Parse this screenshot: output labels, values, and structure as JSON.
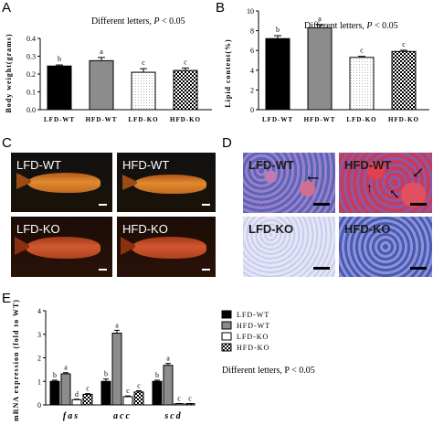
{
  "panels": {
    "a": "A",
    "b": "B",
    "c": "C",
    "d": "D",
    "e": "E"
  },
  "note_ab": "Different letters, ",
  "note_p": "P",
  "note_val": " < 0.05",
  "note_e": "Different letters, P < 0.05",
  "photos_c": [
    {
      "label": "LFD-WT"
    },
    {
      "label": "HFD-WT"
    },
    {
      "label": "LFD-KO"
    },
    {
      "label": "HFD-KO"
    }
  ],
  "photos_d": [
    {
      "label": "LFD-WT"
    },
    {
      "label": "HFD-WT"
    },
    {
      "label": "LFD-KO"
    },
    {
      "label": "HFD-KO"
    }
  ],
  "colors": {
    "lfd_wt": "#000000",
    "hfd_wt": "#8c8c8c",
    "lfd_ko": "#ffffff",
    "hfd_ko": "checker"
  },
  "chart_data": [
    {
      "type": "bar",
      "ylabel": "Body weight(grams)",
      "categories": [
        "LFD-WT",
        "HFD-WT",
        "LFD-KO",
        "HFD-KO"
      ],
      "values": [
        0.245,
        0.275,
        0.21,
        0.22
      ],
      "errors": [
        0.006,
        0.018,
        0.02,
        0.014
      ],
      "letters": [
        "b",
        "a",
        "c",
        "c"
      ],
      "ylim": [
        0,
        0.4
      ],
      "yticks": [
        0.0,
        0.1,
        0.2,
        0.3,
        0.4
      ],
      "ytick_labels": [
        "0.0",
        "0.1",
        "0.2",
        "0.3",
        "0.4"
      ]
    },
    {
      "type": "bar",
      "ylabel": "Lipid content(%)",
      "categories": [
        "LFD-WT",
        "HFD-WT",
        "LFD-KO",
        "HFD-KO"
      ],
      "values": [
        7.2,
        8.3,
        5.3,
        5.9
      ],
      "errors": [
        0.3,
        0.3,
        0.1,
        0.12
      ],
      "letters": [
        "b",
        "a",
        "c",
        "c"
      ],
      "ylim": [
        0,
        10
      ],
      "yticks": [
        0,
        2,
        4,
        6,
        8,
        10
      ],
      "ytick_labels": [
        "0",
        "2",
        "4",
        "6",
        "8",
        "10"
      ]
    },
    {
      "type": "bar",
      "ylabel": "mRNA expression (fold to WT)",
      "groups": [
        "fas",
        "acc",
        "scd"
      ],
      "series": [
        {
          "name": "LFD-WT",
          "values": [
            1.0,
            1.0,
            1.0
          ],
          "errors": [
            0.05,
            0.1,
            0.05
          ],
          "letters": [
            "b",
            "b",
            "b"
          ]
        },
        {
          "name": "HFD-WT",
          "values": [
            1.32,
            3.05,
            1.68
          ],
          "errors": [
            0.05,
            0.12,
            0.08
          ],
          "letters": [
            "a",
            "a",
            "a"
          ]
        },
        {
          "name": "LFD-KO",
          "values": [
            0.22,
            0.35,
            0.05
          ],
          "errors": [
            0.02,
            0.03,
            0.01
          ],
          "letters": [
            "d",
            "c",
            "c"
          ]
        },
        {
          "name": "HFD-KO",
          "values": [
            0.45,
            0.55,
            0.05
          ],
          "errors": [
            0.03,
            0.05,
            0.01
          ],
          "letters": [
            "c",
            "c",
            "c"
          ]
        }
      ],
      "ylim": [
        0,
        4
      ],
      "yticks": [
        0,
        1,
        2,
        3,
        4
      ],
      "ytick_labels": [
        "0",
        "1",
        "2",
        "3",
        "4"
      ]
    }
  ]
}
